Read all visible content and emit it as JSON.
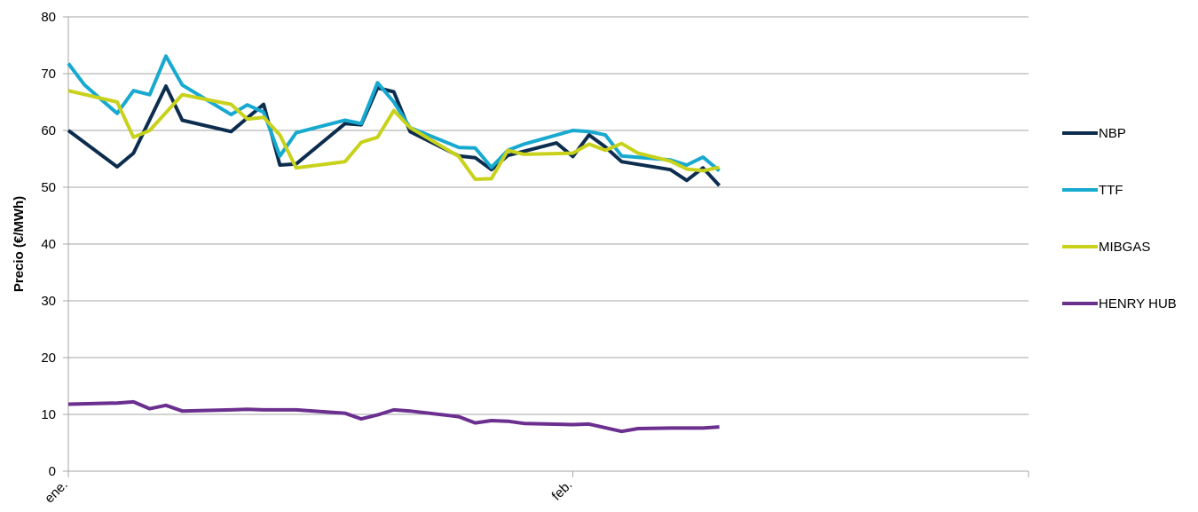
{
  "chart_data": {
    "type": "line",
    "title": "",
    "xlabel": "",
    "ylabel": "Precio (€/MWh)",
    "ylim": [
      0,
      80
    ],
    "yticks": [
      0,
      10,
      20,
      30,
      40,
      50,
      60,
      70,
      80
    ],
    "xlim": [
      "2022-01-01",
      "2022-03-01"
    ],
    "xtick_labels": [
      {
        "date": "2022-01-01",
        "label": "ene."
      },
      {
        "date": "2022-02-01",
        "label": "feb."
      }
    ],
    "grid": "horizontal",
    "legend_position": "right",
    "series": [
      {
        "name": "NBP",
        "color": "#0d2d4f",
        "points": [
          [
            "2022-01-01",
            60.0
          ],
          [
            "2022-01-04",
            53.6
          ],
          [
            "2022-01-05",
            56.0
          ],
          [
            "2022-01-07",
            67.8
          ],
          [
            "2022-01-08",
            61.8
          ],
          [
            "2022-01-11",
            59.8
          ],
          [
            "2022-01-12",
            62.2
          ],
          [
            "2022-01-13",
            64.6
          ],
          [
            "2022-01-14",
            53.9
          ],
          [
            "2022-01-15",
            54.1
          ],
          [
            "2022-01-18",
            61.2
          ],
          [
            "2022-01-19",
            61.0
          ],
          [
            "2022-01-20",
            67.5
          ],
          [
            "2022-01-21",
            66.8
          ],
          [
            "2022-01-22",
            59.8
          ],
          [
            "2022-01-25",
            55.5
          ],
          [
            "2022-01-26",
            55.2
          ],
          [
            "2022-01-27",
            53.1
          ],
          [
            "2022-01-28",
            55.6
          ],
          [
            "2022-01-31",
            57.8
          ],
          [
            "2022-02-01",
            55.4
          ],
          [
            "2022-02-02",
            59.2
          ],
          [
            "2022-02-03",
            57.1
          ],
          [
            "2022-02-04",
            54.5
          ],
          [
            "2022-02-07",
            53.1
          ],
          [
            "2022-02-08",
            51.2
          ],
          [
            "2022-02-09",
            53.4
          ],
          [
            "2022-02-10",
            50.3
          ]
        ]
      },
      {
        "name": "TTF",
        "color": "#17a9cf",
        "points": [
          [
            "2022-01-01",
            71.8
          ],
          [
            "2022-01-02",
            68.0
          ],
          [
            "2022-01-04",
            63.0
          ],
          [
            "2022-01-05",
            67.0
          ],
          [
            "2022-01-06",
            66.3
          ],
          [
            "2022-01-07",
            73.1
          ],
          [
            "2022-01-08",
            68.0
          ],
          [
            "2022-01-11",
            62.8
          ],
          [
            "2022-01-12",
            64.5
          ],
          [
            "2022-01-13",
            63.2
          ],
          [
            "2022-01-14",
            55.5
          ],
          [
            "2022-01-15",
            59.6
          ],
          [
            "2022-01-18",
            61.8
          ],
          [
            "2022-01-19",
            61.2
          ],
          [
            "2022-01-20",
            68.4
          ],
          [
            "2022-01-21",
            65.0
          ],
          [
            "2022-01-22",
            60.5
          ],
          [
            "2022-01-25",
            57.0
          ],
          [
            "2022-01-26",
            56.9
          ],
          [
            "2022-01-27",
            53.5
          ],
          [
            "2022-01-28",
            56.5
          ],
          [
            "2022-01-29",
            57.6
          ],
          [
            "2022-02-01",
            60.0
          ],
          [
            "2022-02-02",
            59.8
          ],
          [
            "2022-02-03",
            59.2
          ],
          [
            "2022-02-04",
            55.5
          ],
          [
            "2022-02-07",
            54.8
          ],
          [
            "2022-02-08",
            53.9
          ],
          [
            "2022-02-09",
            55.3
          ],
          [
            "2022-02-10",
            52.9
          ]
        ]
      },
      {
        "name": "MIBGAS",
        "color": "#c8d21b",
        "points": [
          [
            "2022-01-01",
            67.0
          ],
          [
            "2022-01-04",
            65.0
          ],
          [
            "2022-01-05",
            58.8
          ],
          [
            "2022-01-06",
            60.0
          ],
          [
            "2022-01-08",
            66.3
          ],
          [
            "2022-01-11",
            64.6
          ],
          [
            "2022-01-12",
            62.0
          ],
          [
            "2022-01-13",
            62.3
          ],
          [
            "2022-01-14",
            59.2
          ],
          [
            "2022-01-15",
            53.4
          ],
          [
            "2022-01-18",
            54.5
          ],
          [
            "2022-01-19",
            57.9
          ],
          [
            "2022-01-20",
            58.8
          ],
          [
            "2022-01-21",
            63.5
          ],
          [
            "2022-01-22",
            60.5
          ],
          [
            "2022-01-25",
            55.4
          ],
          [
            "2022-01-26",
            51.4
          ],
          [
            "2022-01-27",
            51.5
          ],
          [
            "2022-01-28",
            56.5
          ],
          [
            "2022-01-29",
            55.8
          ],
          [
            "2022-02-01",
            56.0
          ],
          [
            "2022-02-02",
            57.6
          ],
          [
            "2022-02-03",
            56.5
          ],
          [
            "2022-02-04",
            57.7
          ],
          [
            "2022-02-05",
            56.0
          ],
          [
            "2022-02-07",
            54.6
          ],
          [
            "2022-02-08",
            53.2
          ],
          [
            "2022-02-09",
            52.9
          ],
          [
            "2022-02-10",
            53.5
          ]
        ]
      },
      {
        "name": "HENRY HUB",
        "color": "#6b2f8f",
        "points": [
          [
            "2022-01-01",
            11.8
          ],
          [
            "2022-01-04",
            12.0
          ],
          [
            "2022-01-05",
            12.2
          ],
          [
            "2022-01-06",
            11.0
          ],
          [
            "2022-01-07",
            11.6
          ],
          [
            "2022-01-08",
            10.6
          ],
          [
            "2022-01-11",
            10.8
          ],
          [
            "2022-01-12",
            10.9
          ],
          [
            "2022-01-13",
            10.8
          ],
          [
            "2022-01-15",
            10.8
          ],
          [
            "2022-01-18",
            10.2
          ],
          [
            "2022-01-19",
            9.2
          ],
          [
            "2022-01-20",
            9.9
          ],
          [
            "2022-01-21",
            10.8
          ],
          [
            "2022-01-22",
            10.6
          ],
          [
            "2022-01-25",
            9.6
          ],
          [
            "2022-01-26",
            8.5
          ],
          [
            "2022-01-27",
            8.9
          ],
          [
            "2022-01-28",
            8.8
          ],
          [
            "2022-01-29",
            8.4
          ],
          [
            "2022-02-01",
            8.2
          ],
          [
            "2022-02-02",
            8.3
          ],
          [
            "2022-02-04",
            7.0
          ],
          [
            "2022-02-05",
            7.5
          ],
          [
            "2022-02-07",
            7.6
          ],
          [
            "2022-02-09",
            7.6
          ],
          [
            "2022-02-10",
            7.8
          ]
        ]
      }
    ]
  }
}
